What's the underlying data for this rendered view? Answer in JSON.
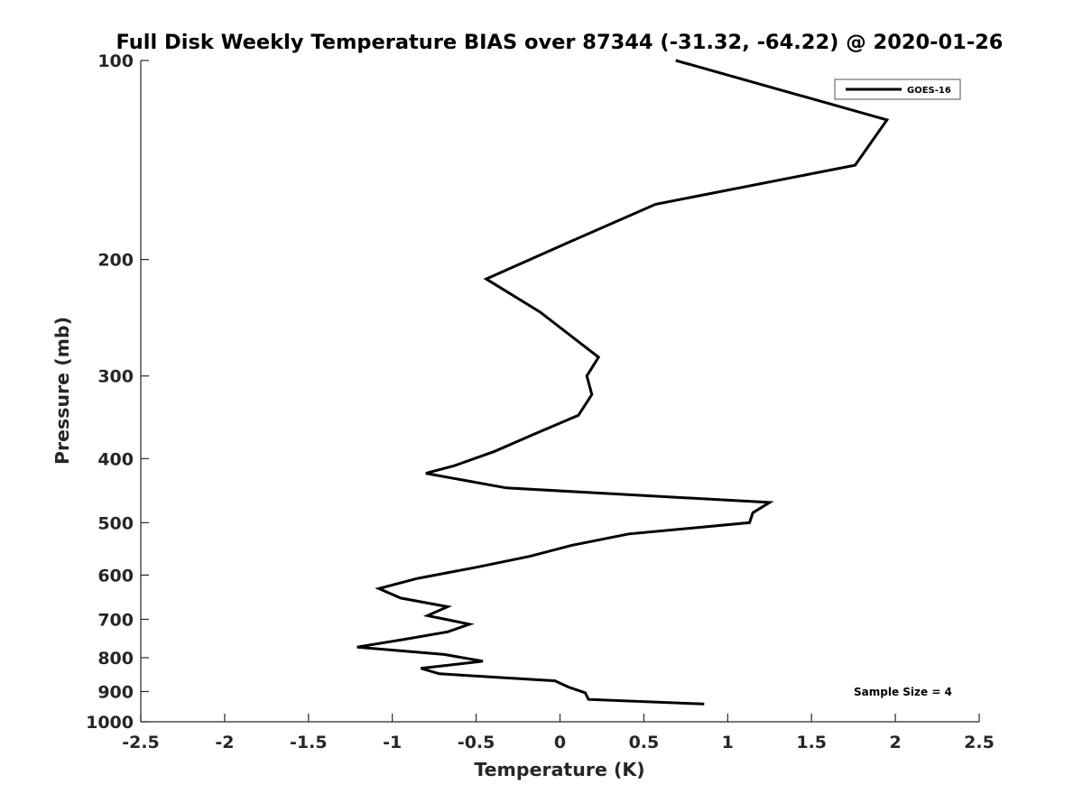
{
  "chart_data": {
    "type": "line",
    "title": "Full Disk Weekly Temperature BIAS over 87344 (-31.32, -64.22) @ 2020-01-26",
    "xlabel": "Temperature (K)",
    "ylabel": "Pressure (mb)",
    "xlim": [
      -2.5,
      2.5
    ],
    "ylim": [
      100,
      1000
    ],
    "yscale": "log",
    "y_reversed": true,
    "x_ticks": [
      -2.5,
      -2,
      -1.5,
      -1,
      -0.5,
      0,
      0.5,
      1,
      1.5,
      2,
      2.5
    ],
    "x_tick_labels": [
      "-2.5",
      "-2",
      "-1.5",
      "-1",
      "-0.5",
      "0",
      "0.5",
      "1",
      "1.5",
      "2",
      "2.5"
    ],
    "y_ticks": [
      100,
      200,
      300,
      400,
      500,
      600,
      700,
      800,
      900,
      1000
    ],
    "y_tick_labels": [
      "100",
      "200",
      "300",
      "400",
      "500",
      "600",
      "700",
      "800",
      "900",
      "1000"
    ],
    "grid": false,
    "legend_position": "top-right",
    "annotation": "Sample Size = 4",
    "series": [
      {
        "name": "GOES-16",
        "color": "#000000",
        "points": [
          {
            "x": 0.69,
            "y": 100
          },
          {
            "x": 1.95,
            "y": 123
          },
          {
            "x": 1.76,
            "y": 144
          },
          {
            "x": 0.57,
            "y": 165
          },
          {
            "x": 0.08,
            "y": 187
          },
          {
            "x": -0.44,
            "y": 214
          },
          {
            "x": -0.12,
            "y": 240
          },
          {
            "x": 0.23,
            "y": 281
          },
          {
            "x": 0.16,
            "y": 300
          },
          {
            "x": 0.19,
            "y": 320
          },
          {
            "x": 0.11,
            "y": 344
          },
          {
            "x": -0.15,
            "y": 367
          },
          {
            "x": -0.39,
            "y": 390
          },
          {
            "x": -0.63,
            "y": 410
          },
          {
            "x": -0.8,
            "y": 421
          },
          {
            "x": -0.32,
            "y": 443
          },
          {
            "x": 1.25,
            "y": 466
          },
          {
            "x": 1.15,
            "y": 483
          },
          {
            "x": 1.13,
            "y": 500
          },
          {
            "x": 0.41,
            "y": 520
          },
          {
            "x": 0.07,
            "y": 541
          },
          {
            "x": -0.18,
            "y": 562
          },
          {
            "x": -0.5,
            "y": 584
          },
          {
            "x": -0.85,
            "y": 607
          },
          {
            "x": -1.08,
            "y": 629
          },
          {
            "x": -0.95,
            "y": 650
          },
          {
            "x": -0.67,
            "y": 670
          },
          {
            "x": -0.79,
            "y": 691
          },
          {
            "x": -0.54,
            "y": 712
          },
          {
            "x": -0.67,
            "y": 731
          },
          {
            "x": -0.92,
            "y": 750
          },
          {
            "x": -1.21,
            "y": 771
          },
          {
            "x": -0.69,
            "y": 791
          },
          {
            "x": -0.46,
            "y": 810
          },
          {
            "x": -0.83,
            "y": 830
          },
          {
            "x": -0.72,
            "y": 846
          },
          {
            "x": -0.03,
            "y": 867
          },
          {
            "x": 0.05,
            "y": 886
          },
          {
            "x": 0.15,
            "y": 904
          },
          {
            "x": 0.17,
            "y": 925
          },
          {
            "x": 0.86,
            "y": 940
          }
        ]
      }
    ]
  }
}
